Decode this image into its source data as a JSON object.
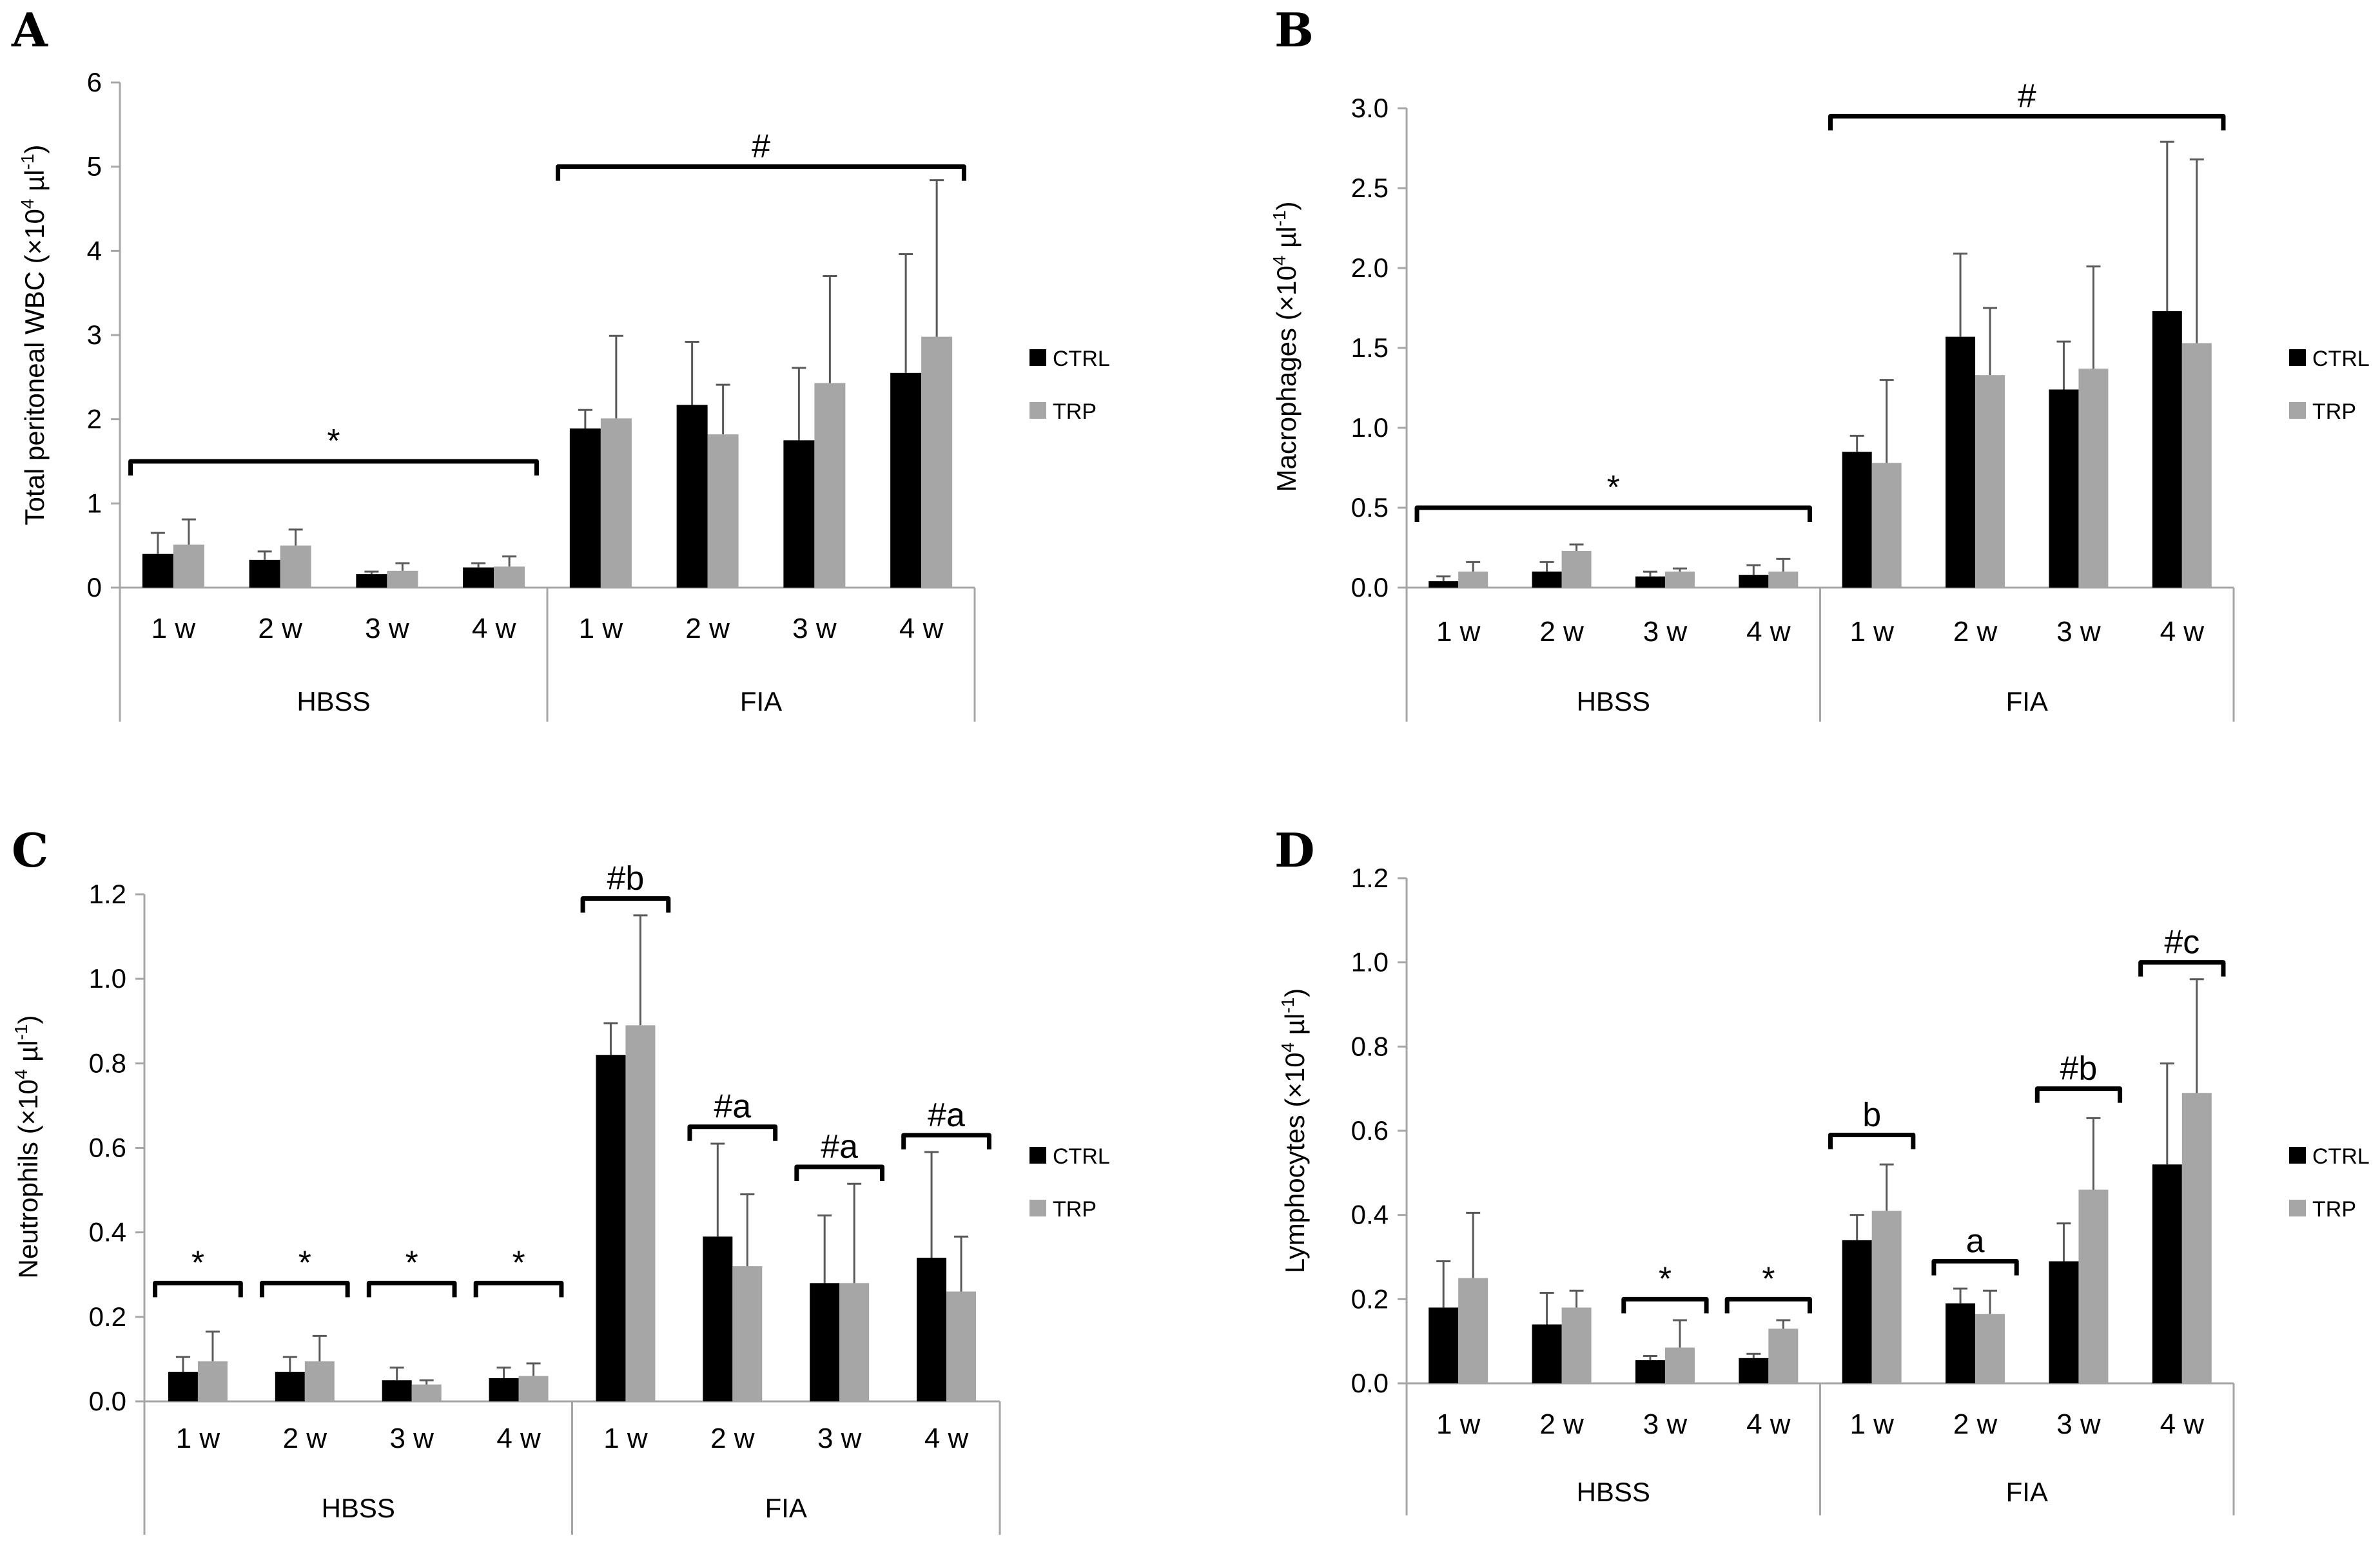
{
  "colors": {
    "ctrl": "#000000",
    "trp": "#a6a6a6",
    "axis": "#a6a6a6",
    "error": "#595959",
    "bracket": "#000000"
  },
  "chart_data": [
    {
      "panel": "A",
      "type": "bar",
      "ylabel": "Total peritoneal WBC (×10⁴ µl⁻¹)",
      "ylabel_parts": [
        "Total peritoneal WBC (×10",
        "4",
        " µl",
        "-1",
        ")"
      ],
      "ylim": [
        0,
        6
      ],
      "yticks": [
        0,
        1,
        2,
        3,
        4,
        5,
        6
      ],
      "ytick_labels": [
        "0",
        "1",
        "2",
        "3",
        "4",
        "5",
        "6"
      ],
      "groups": [
        "HBSS",
        "FIA"
      ],
      "categories": [
        "1 w",
        "2 w",
        "3 w",
        "4 w",
        "1 w",
        "2 w",
        "3 w",
        "4 w"
      ],
      "series": [
        {
          "name": "CTRL",
          "values": [
            0.4,
            0.33,
            0.16,
            0.24,
            1.89,
            2.17,
            1.75,
            2.55
          ],
          "errors": [
            0.25,
            0.1,
            0.03,
            0.05,
            0.22,
            0.75,
            0.86,
            1.41
          ]
        },
        {
          "name": "TRP",
          "values": [
            0.51,
            0.5,
            0.2,
            0.25,
            2.01,
            1.82,
            2.43,
            2.98
          ],
          "errors": [
            0.3,
            0.19,
            0.09,
            0.12,
            0.98,
            0.59,
            1.27,
            1.86
          ]
        }
      ],
      "brackets": [
        {
          "label": "*",
          "from": 0,
          "to": 3,
          "y": 1.5
        },
        {
          "label": "#",
          "from": 4,
          "to": 7,
          "y": 5.0
        }
      ],
      "legend": [
        "CTRL",
        "TRP"
      ]
    },
    {
      "panel": "B",
      "type": "bar",
      "ylabel": "Macrophages (×10⁴ µl⁻¹)",
      "ylabel_parts": [
        "Macrophages (×10",
        "4",
        " µl",
        "-1",
        ")"
      ],
      "ylim": [
        0,
        3
      ],
      "yticks": [
        0,
        0.5,
        1,
        1.5,
        2,
        2.5,
        3
      ],
      "ytick_labels": [
        "0.0",
        "0.5",
        "1.0",
        "1.5",
        "2.0",
        "2.5",
        "3.0"
      ],
      "groups": [
        "HBSS",
        "FIA"
      ],
      "categories": [
        "1 w",
        "2 w",
        "3 w",
        "4 w",
        "1 w",
        "2 w",
        "3 w",
        "4 w"
      ],
      "series": [
        {
          "name": "CTRL",
          "values": [
            0.04,
            0.1,
            0.07,
            0.08,
            0.85,
            1.57,
            1.24,
            1.73
          ],
          "errors": [
            0.03,
            0.06,
            0.03,
            0.06,
            0.1,
            0.52,
            0.3,
            1.06
          ]
        },
        {
          "name": "TRP",
          "values": [
            0.1,
            0.23,
            0.1,
            0.1,
            0.78,
            1.33,
            1.37,
            1.53
          ],
          "errors": [
            0.06,
            0.04,
            0.02,
            0.08,
            0.52,
            0.42,
            0.64,
            1.15
          ]
        }
      ],
      "brackets": [
        {
          "label": "*",
          "from": 0,
          "to": 3,
          "y": 0.5
        },
        {
          "label": "#",
          "from": 4,
          "to": 7,
          "y": 2.95
        }
      ],
      "legend": [
        "CTRL",
        "TRP"
      ]
    },
    {
      "panel": "C",
      "type": "bar",
      "ylabel": "Neutrophils (×10⁴ µl⁻¹)",
      "ylabel_parts": [
        "Neutrophils (×10",
        "4",
        " µl",
        "-1",
        ")"
      ],
      "ylim": [
        0,
        1.2
      ],
      "yticks": [
        0,
        0.2,
        0.4,
        0.6,
        0.8,
        1.0,
        1.2
      ],
      "ytick_labels": [
        "0.0",
        "0.2",
        "0.4",
        "0.6",
        "0.8",
        "1.0",
        "1.2"
      ],
      "groups": [
        "HBSS",
        "FIA"
      ],
      "categories": [
        "1 w",
        "2 w",
        "3 w",
        "4 w",
        "1 w",
        "2 w",
        "3 w",
        "4 w"
      ],
      "series": [
        {
          "name": "CTRL",
          "values": [
            0.07,
            0.07,
            0.05,
            0.055,
            0.82,
            0.39,
            0.28,
            0.34
          ],
          "errors": [
            0.035,
            0.035,
            0.03,
            0.025,
            0.075,
            0.22,
            0.16,
            0.25
          ]
        },
        {
          "name": "TRP",
          "values": [
            0.095,
            0.095,
            0.04,
            0.06,
            0.89,
            0.32,
            0.28,
            0.26
          ],
          "errors": [
            0.07,
            0.06,
            0.01,
            0.03,
            0.26,
            0.17,
            0.235,
            0.13
          ]
        }
      ],
      "brackets": [
        {
          "label": "*",
          "from": 0,
          "to": 0,
          "y": 0.28
        },
        {
          "label": "*",
          "from": 1,
          "to": 1,
          "y": 0.28
        },
        {
          "label": "*",
          "from": 2,
          "to": 2,
          "y": 0.28
        },
        {
          "label": "*",
          "from": 3,
          "to": 3,
          "y": 0.28
        },
        {
          "label": "#b",
          "from": 4,
          "to": 4,
          "y": 1.19
        },
        {
          "label": "#a",
          "from": 5,
          "to": 5,
          "y": 0.65
        },
        {
          "label": "#a",
          "from": 6,
          "to": 6,
          "y": 0.555
        },
        {
          "label": "#a",
          "from": 7,
          "to": 7,
          "y": 0.63
        }
      ],
      "legend": [
        "CTRL",
        "TRP"
      ]
    },
    {
      "panel": "D",
      "type": "bar",
      "ylabel": "Lymphocytes (×10⁴ µl⁻¹)",
      "ylabel_parts": [
        "Lymphocytes (×10",
        "4",
        " µl",
        "-1",
        ")"
      ],
      "ylim": [
        0,
        1.2
      ],
      "yticks": [
        0,
        0.2,
        0.4,
        0.6,
        0.8,
        1.0,
        1.2
      ],
      "ytick_labels": [
        "0.0",
        "0.2",
        "0.4",
        "0.6",
        "0.8",
        "1.0",
        "1.2"
      ],
      "groups": [
        "HBSS",
        "FIA"
      ],
      "categories": [
        "1 w",
        "2 w",
        "3 w",
        "4 w",
        "1 w",
        "2 w",
        "3 w",
        "4 w"
      ],
      "series": [
        {
          "name": "CTRL",
          "values": [
            0.18,
            0.14,
            0.055,
            0.06,
            0.34,
            0.19,
            0.29,
            0.52
          ],
          "errors": [
            0.11,
            0.075,
            0.01,
            0.01,
            0.06,
            0.035,
            0.09,
            0.24
          ]
        },
        {
          "name": "TRP",
          "values": [
            0.25,
            0.18,
            0.085,
            0.13,
            0.41,
            0.165,
            0.46,
            0.69
          ],
          "errors": [
            0.155,
            0.04,
            0.065,
            0.02,
            0.11,
            0.055,
            0.17,
            0.27
          ]
        }
      ],
      "brackets": [
        {
          "label": "*",
          "from": 2,
          "to": 2,
          "y": 0.2
        },
        {
          "label": "*",
          "from": 3,
          "to": 3,
          "y": 0.2
        },
        {
          "label": "b",
          "from": 4,
          "to": 4,
          "y": 0.59
        },
        {
          "label": "a",
          "from": 5,
          "to": 5,
          "y": 0.29
        },
        {
          "label": "#b",
          "from": 6,
          "to": 6,
          "y": 0.7
        },
        {
          "label": "#c",
          "from": 7,
          "to": 7,
          "y": 1.0
        }
      ],
      "legend": [
        "CTRL",
        "TRP"
      ]
    }
  ]
}
